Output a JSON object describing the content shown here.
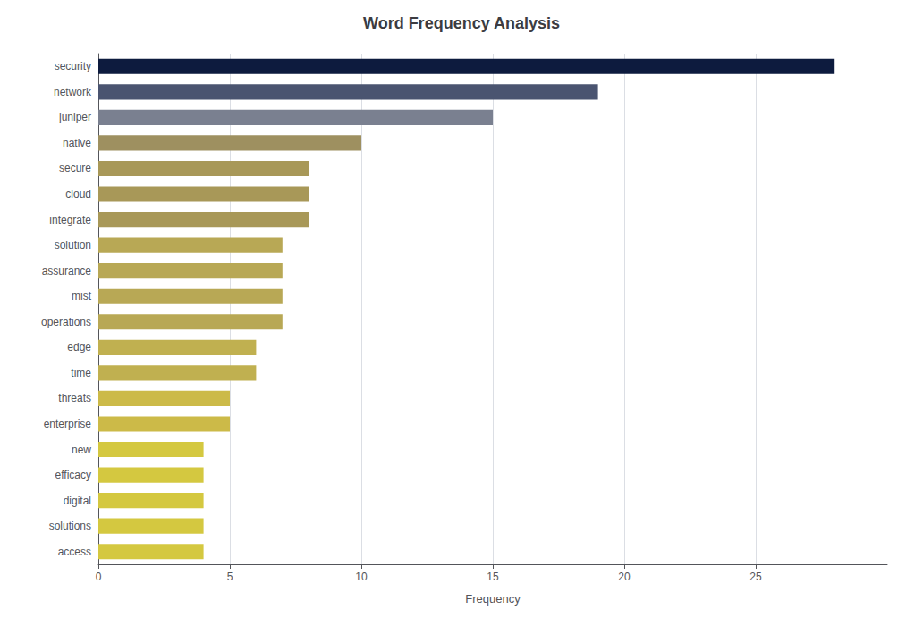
{
  "chart_data": {
    "type": "bar",
    "orientation": "horizontal",
    "title": "Word Frequency Analysis",
    "xlabel": "Frequency",
    "categories": [
      "security",
      "network",
      "juniper",
      "native",
      "secure",
      "cloud",
      "integrate",
      "solution",
      "assurance",
      "mist",
      "operations",
      "edge",
      "time",
      "threats",
      "enterprise",
      "new",
      "efficacy",
      "digital",
      "solutions",
      "access"
    ],
    "values": [
      28,
      19,
      15,
      10,
      8,
      8,
      8,
      7,
      7,
      7,
      7,
      6,
      6,
      5,
      5,
      4,
      4,
      4,
      4,
      4
    ],
    "colors": [
      "#0d1b3e",
      "#4a5470",
      "#7a8090",
      "#9e9060",
      "#a89858",
      "#a89858",
      "#a89858",
      "#b8a855",
      "#b8a855",
      "#b8a855",
      "#b8a855",
      "#c0b050",
      "#c0b050",
      "#ccba48",
      "#ccba48",
      "#d4c840",
      "#d4c840",
      "#d4c840",
      "#d4c840",
      "#d4c840"
    ],
    "xlim": [
      0,
      30
    ],
    "xticks": [
      0,
      5,
      10,
      15,
      20,
      25
    ],
    "grid": true
  }
}
